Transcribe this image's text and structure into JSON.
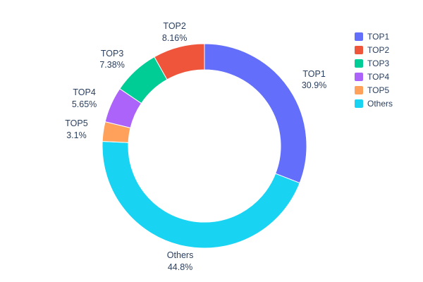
{
  "chart_data": {
    "type": "pie",
    "hole": 0.745,
    "labels": [
      "TOP1",
      "TOP2",
      "TOP3",
      "TOP4",
      "TOP5",
      "Others"
    ],
    "values": [
      30.9,
      8.16,
      7.38,
      5.65,
      3.1,
      44.8
    ],
    "percent_labels": [
      "30.9%",
      "8.16%",
      "7.38%",
      "5.65%",
      "3.1%",
      "44.8%"
    ],
    "colors": [
      "#636EFA",
      "#EF553B",
      "#00CC96",
      "#AB63FA",
      "#FFA15A",
      "#19D3F3"
    ],
    "slice_order_clockwise": [
      "TOP1",
      "Others",
      "TOP5",
      "TOP4",
      "TOP3",
      "TOP2"
    ],
    "title": "",
    "legend": {
      "position": "top-right",
      "entries": [
        "TOP1",
        "TOP2",
        "TOP3",
        "TOP4",
        "TOP5",
        "Others"
      ]
    },
    "text_color": "#2a3f5f",
    "background": "#ffffff"
  }
}
